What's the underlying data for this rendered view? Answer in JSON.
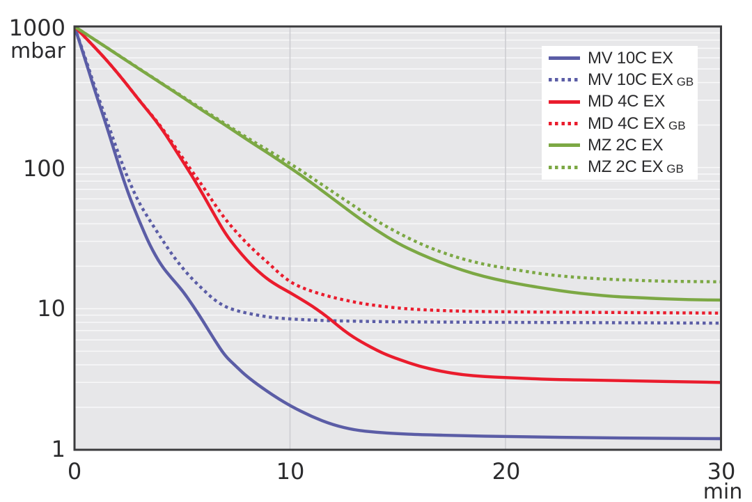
{
  "chart_data": {
    "type": "line",
    "title": "",
    "xlabel": "min",
    "ylabel": "mbar",
    "x_scale": "linear",
    "y_scale": "log",
    "xlim": [
      0,
      30
    ],
    "ylim": [
      1,
      1000
    ],
    "x_tick_labels": [
      "0",
      "10",
      "20",
      "30"
    ],
    "x_tick_values": [
      0,
      10,
      20,
      30
    ],
    "y_tick_labels": [
      "1000",
      "100",
      "10",
      "1"
    ],
    "y_tick_values": [
      1000,
      100,
      10,
      1
    ],
    "grid": true,
    "minor_log_grid": true,
    "legend_position": "top-right",
    "plot_background": "#E7E7E9",
    "grid_color": "#FAFAFB",
    "vgrid_color": "#CDCDD1",
    "border_color": "#3B3B3D",
    "text_color": "#2B2B2D",
    "legend_background": "#FFFFFF",
    "series": [
      {
        "name": "MV 10C EX",
        "gb": "",
        "style": "solid",
        "color": "#5B5DA6",
        "points": [
          [
            0,
            1000
          ],
          [
            0.5,
            580
          ],
          [
            1,
            330
          ],
          [
            1.5,
            195
          ],
          [
            2,
            110
          ],
          [
            2.5,
            65
          ],
          [
            3,
            42
          ],
          [
            3.5,
            28
          ],
          [
            4,
            20.5
          ],
          [
            4.5,
            16.5
          ],
          [
            5,
            13.5
          ],
          [
            5.5,
            10.5
          ],
          [
            6,
            8
          ],
          [
            6.5,
            6
          ],
          [
            7,
            4.6
          ],
          [
            7.5,
            3.9
          ],
          [
            8,
            3.3
          ],
          [
            9,
            2.55
          ],
          [
            10,
            2.05
          ],
          [
            11,
            1.72
          ],
          [
            12,
            1.5
          ],
          [
            13,
            1.38
          ],
          [
            14,
            1.33
          ],
          [
            15,
            1.3
          ],
          [
            16,
            1.28
          ],
          [
            18,
            1.26
          ],
          [
            20,
            1.24
          ],
          [
            25,
            1.21
          ],
          [
            30,
            1.2
          ]
        ]
      },
      {
        "name": "MV 10C EX",
        "gb": "GB",
        "style": "dotted",
        "color": "#5B5DA6",
        "points": [
          [
            0,
            1000
          ],
          [
            0.5,
            600
          ],
          [
            1,
            350
          ],
          [
            1.5,
            215
          ],
          [
            2,
            130
          ],
          [
            2.5,
            82
          ],
          [
            3,
            56
          ],
          [
            3.5,
            42
          ],
          [
            4,
            32
          ],
          [
            4.5,
            24.5
          ],
          [
            5,
            19.5
          ],
          [
            5.5,
            16
          ],
          [
            6,
            13.5
          ],
          [
            6.5,
            11.5
          ],
          [
            7,
            10.3
          ],
          [
            7.5,
            9.7
          ],
          [
            8,
            9.3
          ],
          [
            9,
            8.7
          ],
          [
            10,
            8.45
          ],
          [
            11,
            8.3
          ],
          [
            12,
            8.2
          ],
          [
            14,
            8.1
          ],
          [
            16,
            8.05
          ],
          [
            20,
            8
          ],
          [
            25,
            7.95
          ],
          [
            30,
            7.9
          ]
        ]
      },
      {
        "name": "MD 4C EX",
        "gb": "",
        "style": "solid",
        "color": "#EA1C2D",
        "points": [
          [
            0,
            1000
          ],
          [
            1,
            700
          ],
          [
            2,
            470
          ],
          [
            3,
            300
          ],
          [
            4,
            195
          ],
          [
            5,
            112
          ],
          [
            5.5,
            85
          ],
          [
            6,
            63
          ],
          [
            6.5,
            46
          ],
          [
            7,
            34
          ],
          [
            7.5,
            27
          ],
          [
            8,
            22
          ],
          [
            8.5,
            18.5
          ],
          [
            9,
            16
          ],
          [
            9.5,
            14.3
          ],
          [
            10,
            13
          ],
          [
            10.5,
            11.7
          ],
          [
            11,
            10.5
          ],
          [
            11.5,
            9.3
          ],
          [
            12,
            8.1
          ],
          [
            12.5,
            7
          ],
          [
            13,
            6.2
          ],
          [
            13.5,
            5.6
          ],
          [
            14,
            5.1
          ],
          [
            14.5,
            4.7
          ],
          [
            15,
            4.4
          ],
          [
            16,
            3.9
          ],
          [
            17,
            3.6
          ],
          [
            18,
            3.4
          ],
          [
            19,
            3.3
          ],
          [
            20,
            3.25
          ],
          [
            22,
            3.15
          ],
          [
            25,
            3.1
          ],
          [
            30,
            3
          ]
        ]
      },
      {
        "name": "MD 4C EX",
        "gb": "GB",
        "style": "dotted",
        "color": "#EA1C2D",
        "points": [
          [
            0,
            1000
          ],
          [
            1,
            700
          ],
          [
            2,
            470
          ],
          [
            3,
            300
          ],
          [
            4,
            198
          ],
          [
            5,
            118
          ],
          [
            5.5,
            92
          ],
          [
            6,
            72
          ],
          [
            6.5,
            55
          ],
          [
            7,
            43
          ],
          [
            7.5,
            35
          ],
          [
            8,
            29
          ],
          [
            8.5,
            24.5
          ],
          [
            9,
            21
          ],
          [
            9.5,
            17.8
          ],
          [
            10,
            15.5
          ],
          [
            10.5,
            14.2
          ],
          [
            11,
            13.3
          ],
          [
            11.5,
            12.6
          ],
          [
            12,
            12
          ],
          [
            13,
            11.1
          ],
          [
            14,
            10.5
          ],
          [
            15,
            10.1
          ],
          [
            16,
            9.85
          ],
          [
            17,
            9.7
          ],
          [
            18,
            9.6
          ],
          [
            20,
            9.5
          ],
          [
            22,
            9.45
          ],
          [
            25,
            9.4
          ],
          [
            30,
            9.3
          ]
        ]
      },
      {
        "name": "MZ 2C EX",
        "gb": "",
        "style": "solid",
        "color": "#7CA844",
        "points": [
          [
            0,
            1000
          ],
          [
            1,
            795
          ],
          [
            2,
            630
          ],
          [
            3,
            500
          ],
          [
            4,
            398
          ],
          [
            5,
            316
          ],
          [
            6,
            250
          ],
          [
            7,
            200
          ],
          [
            8,
            158
          ],
          [
            9,
            126
          ],
          [
            10,
            100
          ],
          [
            11,
            78
          ],
          [
            12,
            60
          ],
          [
            13,
            46
          ],
          [
            14,
            36
          ],
          [
            15,
            29
          ],
          [
            16,
            24.5
          ],
          [
            17,
            21.2
          ],
          [
            18,
            18.7
          ],
          [
            19,
            16.9
          ],
          [
            20,
            15.6
          ],
          [
            21,
            14.6
          ],
          [
            22,
            13.8
          ],
          [
            23,
            13.1
          ],
          [
            24,
            12.6
          ],
          [
            25,
            12.2
          ],
          [
            26,
            12
          ],
          [
            27,
            11.8
          ],
          [
            28,
            11.65
          ],
          [
            29,
            11.55
          ],
          [
            30,
            11.5
          ]
        ]
      },
      {
        "name": "MZ 2C EX",
        "gb": "GB",
        "style": "dotted",
        "color": "#7CA844",
        "points": [
          [
            0,
            1000
          ],
          [
            1,
            795
          ],
          [
            2,
            632
          ],
          [
            3,
            503
          ],
          [
            4,
            400
          ],
          [
            5,
            320
          ],
          [
            6,
            255
          ],
          [
            7,
            204
          ],
          [
            8,
            163
          ],
          [
            9,
            132
          ],
          [
            10,
            107
          ],
          [
            11,
            85
          ],
          [
            12,
            67
          ],
          [
            13,
            53
          ],
          [
            14,
            42
          ],
          [
            15,
            34.5
          ],
          [
            16,
            29
          ],
          [
            17,
            25.2
          ],
          [
            18,
            22.5
          ],
          [
            19,
            20.6
          ],
          [
            20,
            19.4
          ],
          [
            21,
            18.3
          ],
          [
            22,
            17.4
          ],
          [
            23,
            16.8
          ],
          [
            24,
            16.4
          ],
          [
            25,
            16.1
          ],
          [
            26,
            15.9
          ],
          [
            27,
            15.7
          ],
          [
            28,
            15.6
          ],
          [
            29,
            15.55
          ],
          [
            30,
            15.5
          ]
        ]
      }
    ]
  }
}
